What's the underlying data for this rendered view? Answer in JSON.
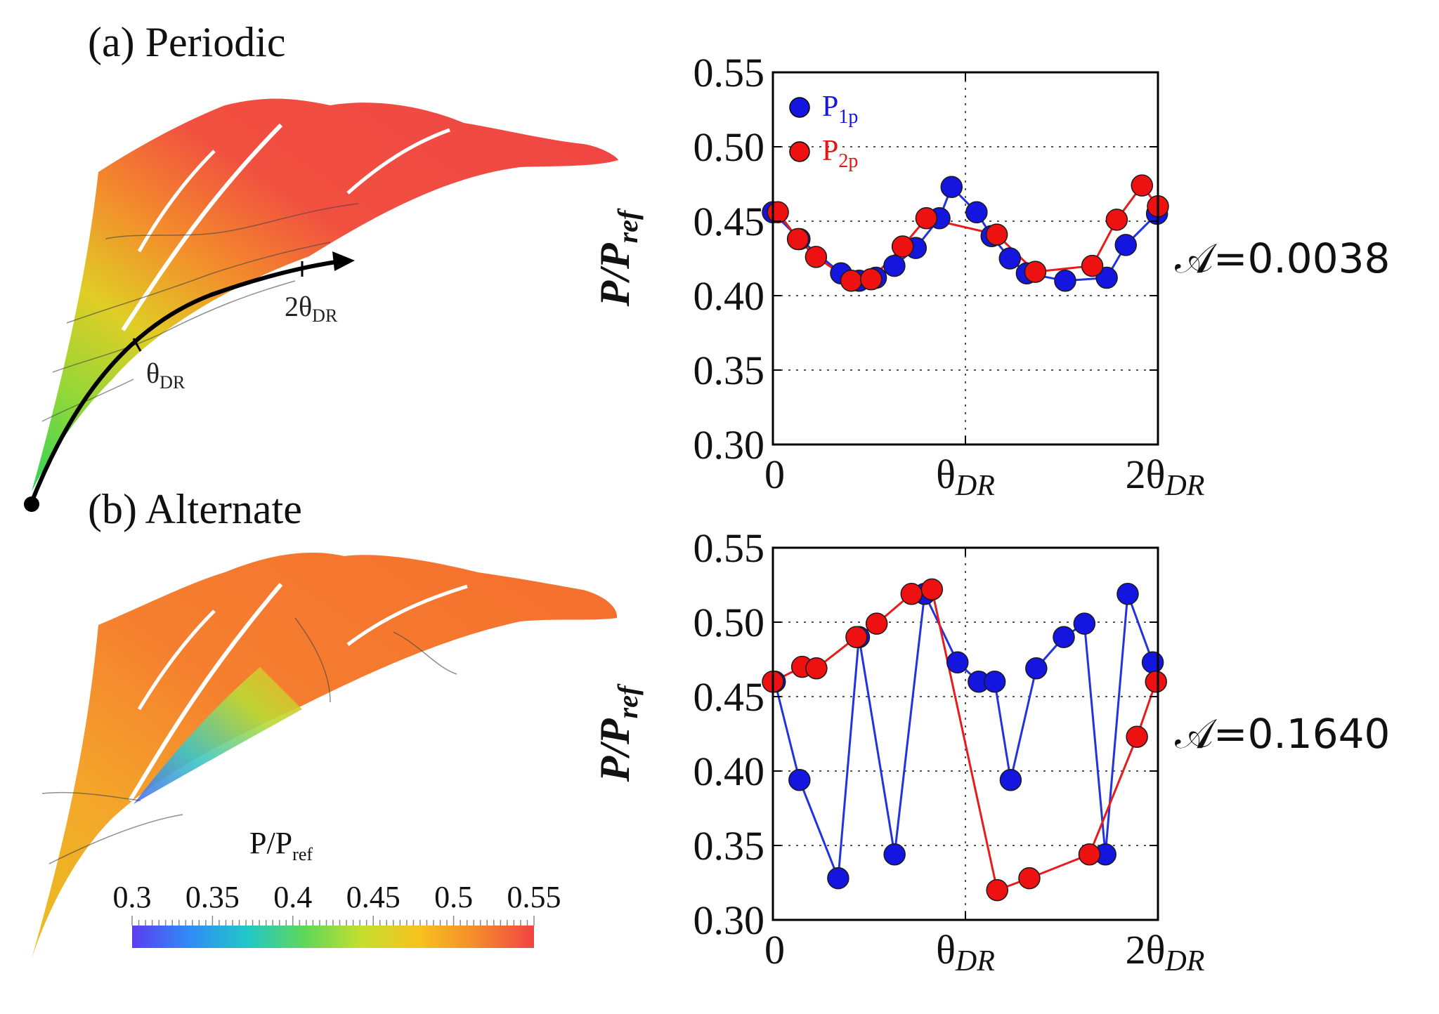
{
  "panel_a": {
    "label": "(a) Periodic",
    "metric": "𝒜=0.0038",
    "angle_label": "θ",
    "angle_sub": "DR",
    "angle2_label": "2θ",
    "angle2_sub": "DR"
  },
  "panel_b": {
    "label": "(b) Alternate",
    "metric": "𝒜=0.1640"
  },
  "colorbar": {
    "title": "P/P",
    "title_sub": "ref",
    "ticks": [
      "0.3",
      "0.35",
      "0.4",
      "0.45",
      "0.5",
      "0.55"
    ],
    "range": [
      0.3,
      0.55
    ],
    "colors": [
      "#5b3df0",
      "#2f8cf6",
      "#22c7c8",
      "#5ed85a",
      "#c6de2e",
      "#f6c21e",
      "#f58a2c",
      "#f04444"
    ]
  },
  "legend": {
    "p1": "P",
    "p1_sub": "1p",
    "p2": "P",
    "p2_sub": "2p"
  },
  "colors": {
    "p1": "#1515e0",
    "p2": "#ee1111",
    "line1": "#2233dd",
    "line2": "#e81a1a"
  },
  "chart_data": [
    {
      "type": "line",
      "title": "Periodic",
      "xlabel": "",
      "ylabel": "P/P_ref",
      "ylabel_parts": {
        "main": "P/P",
        "sub": "ref"
      },
      "ylim": [
        0.3,
        0.55
      ],
      "xlim": [
        0,
        2
      ],
      "yticks": [
        0.3,
        0.35,
        0.4,
        0.45,
        0.5,
        0.55
      ],
      "ytick_labels": [
        "0.30",
        "0.35",
        "0.40",
        "0.45",
        "0.50",
        "0.55"
      ],
      "xticks": [
        0,
        1,
        2
      ],
      "xtick_labels": [
        {
          "main": "0",
          "sub": ""
        },
        {
          "main": "θ",
          "sub": "DR"
        },
        {
          "main": "2θ",
          "sub": "DR"
        }
      ],
      "grid": true,
      "legend": "top-left",
      "series": [
        {
          "name": "P1p",
          "x": [
            0.0,
            0.138,
            0.354,
            0.448,
            0.535,
            0.631,
            0.742,
            0.865,
            0.928,
            1.058,
            1.136,
            1.231,
            1.319,
            1.518,
            1.734,
            1.833,
            1.995
          ],
          "values": [
            0.456,
            0.438,
            0.415,
            0.41,
            0.412,
            0.42,
            0.432,
            0.452,
            0.473,
            0.456,
            0.44,
            0.425,
            0.415,
            0.41,
            0.412,
            0.434,
            0.455
          ]
        },
        {
          "name": "P2p",
          "x": [
            0.026,
            0.13,
            0.224,
            0.407,
            0.51,
            0.674,
            0.797,
            1.163,
            1.363,
            1.659,
            1.786,
            1.917,
            2.0
          ],
          "values": [
            0.456,
            0.438,
            0.426,
            0.41,
            0.411,
            0.433,
            0.452,
            0.441,
            0.416,
            0.42,
            0.451,
            0.474,
            0.46
          ]
        }
      ]
    },
    {
      "type": "line",
      "title": "Alternate",
      "xlabel": "",
      "ylabel": "P/P_ref",
      "ylabel_parts": {
        "main": "P/P",
        "sub": "ref"
      },
      "ylim": [
        0.3,
        0.55
      ],
      "xlim": [
        0,
        2
      ],
      "yticks": [
        0.3,
        0.35,
        0.4,
        0.45,
        0.5,
        0.55
      ],
      "ytick_labels": [
        "0.30",
        "0.35",
        "0.40",
        "0.45",
        "0.50",
        "0.55"
      ],
      "xticks": [
        0,
        1,
        2
      ],
      "xtick_labels": [
        {
          "main": "0",
          "sub": ""
        },
        {
          "main": "θ",
          "sub": "DR"
        },
        {
          "main": "2θ",
          "sub": "DR"
        }
      ],
      "grid": true,
      "legend": "none",
      "series": [
        {
          "name": "P1p",
          "x": [
            0.01,
            0.138,
            0.339,
            0.447,
            0.632,
            0.788,
            0.959,
            1.069,
            1.152,
            1.235,
            1.368,
            1.511,
            1.618,
            1.727,
            1.843,
            1.973
          ],
          "values": [
            0.46,
            0.394,
            0.328,
            0.49,
            0.344,
            0.519,
            0.473,
            0.46,
            0.46,
            0.394,
            0.469,
            0.49,
            0.499,
            0.344,
            0.519,
            0.473
          ]
        },
        {
          "name": "P2p",
          "x": [
            0.0,
            0.152,
            0.226,
            0.434,
            0.539,
            0.72,
            0.826,
            1.165,
            1.332,
            1.644,
            1.891,
            1.99
          ],
          "values": [
            0.46,
            0.47,
            0.469,
            0.49,
            0.499,
            0.519,
            0.522,
            0.32,
            0.328,
            0.344,
            0.423,
            0.46
          ]
        }
      ]
    }
  ]
}
